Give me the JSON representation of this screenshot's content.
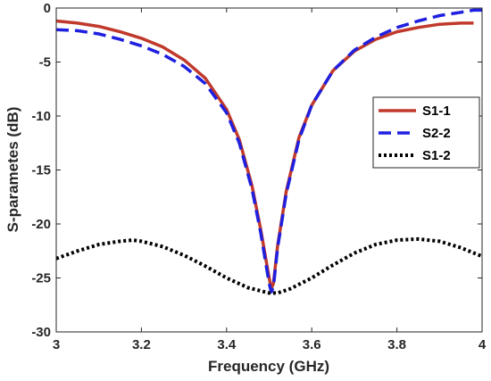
{
  "chart_data": {
    "type": "line",
    "title": "",
    "xlabel": "Frequency (GHz)",
    "ylabel": "S-parametes (dB)",
    "xlim": [
      3,
      4
    ],
    "ylim": [
      -30,
      0
    ],
    "xticks": [
      "3",
      "3.2",
      "3.4",
      "3.6",
      "3.8",
      "4"
    ],
    "yticks": [
      "0",
      "-5",
      "-10",
      "-15",
      "-20",
      "-25",
      "-30"
    ],
    "grid": false,
    "legend_position": "right",
    "series": [
      {
        "name": "S1-1",
        "color": "#c0392b",
        "style": "solid",
        "x": [
          3.0,
          3.05,
          3.1,
          3.15,
          3.2,
          3.25,
          3.3,
          3.35,
          3.4,
          3.43,
          3.46,
          3.48,
          3.5,
          3.505,
          3.51,
          3.52,
          3.54,
          3.57,
          3.6,
          3.65,
          3.7,
          3.75,
          3.8,
          3.85,
          3.9,
          3.95,
          3.98
        ],
        "y": [
          -1.2,
          -1.4,
          -1.7,
          -2.2,
          -2.8,
          -3.6,
          -4.8,
          -6.5,
          -9.4,
          -12.2,
          -16.5,
          -20.5,
          -25.0,
          -26.0,
          -25.5,
          -22.0,
          -17.0,
          -12.0,
          -9.0,
          -5.8,
          -4.0,
          -2.9,
          -2.2,
          -1.8,
          -1.5,
          -1.4,
          -1.4
        ]
      },
      {
        "name": "S2-2",
        "color": "#1f1fe0",
        "style": "dashed",
        "x": [
          3.0,
          3.05,
          3.1,
          3.15,
          3.2,
          3.25,
          3.3,
          3.35,
          3.4,
          3.43,
          3.46,
          3.48,
          3.5,
          3.505,
          3.51,
          3.52,
          3.54,
          3.57,
          3.6,
          3.65,
          3.7,
          3.75,
          3.8,
          3.85,
          3.9,
          3.95,
          3.98,
          4.0
        ],
        "y": [
          -2.0,
          -2.1,
          -2.4,
          -2.9,
          -3.5,
          -4.3,
          -5.4,
          -7.0,
          -9.7,
          -12.5,
          -16.8,
          -20.8,
          -25.5,
          -26.3,
          -25.8,
          -22.2,
          -17.2,
          -12.2,
          -9.0,
          -5.8,
          -3.9,
          -2.7,
          -1.8,
          -1.2,
          -0.7,
          -0.4,
          -0.2,
          -0.2
        ]
      },
      {
        "name": "S1-2",
        "color": "#000000",
        "style": "dotted",
        "x": [
          3.0,
          3.05,
          3.1,
          3.15,
          3.18,
          3.2,
          3.25,
          3.3,
          3.35,
          3.4,
          3.45,
          3.5,
          3.52,
          3.55,
          3.6,
          3.65,
          3.7,
          3.75,
          3.8,
          3.85,
          3.9,
          3.95,
          4.0
        ],
        "y": [
          -23.2,
          -22.5,
          -21.9,
          -21.6,
          -21.5,
          -21.6,
          -22.1,
          -22.9,
          -23.9,
          -25.0,
          -25.9,
          -26.4,
          -26.4,
          -26.0,
          -25.0,
          -23.8,
          -22.7,
          -21.9,
          -21.5,
          -21.4,
          -21.6,
          -22.2,
          -23.0
        ]
      }
    ]
  }
}
